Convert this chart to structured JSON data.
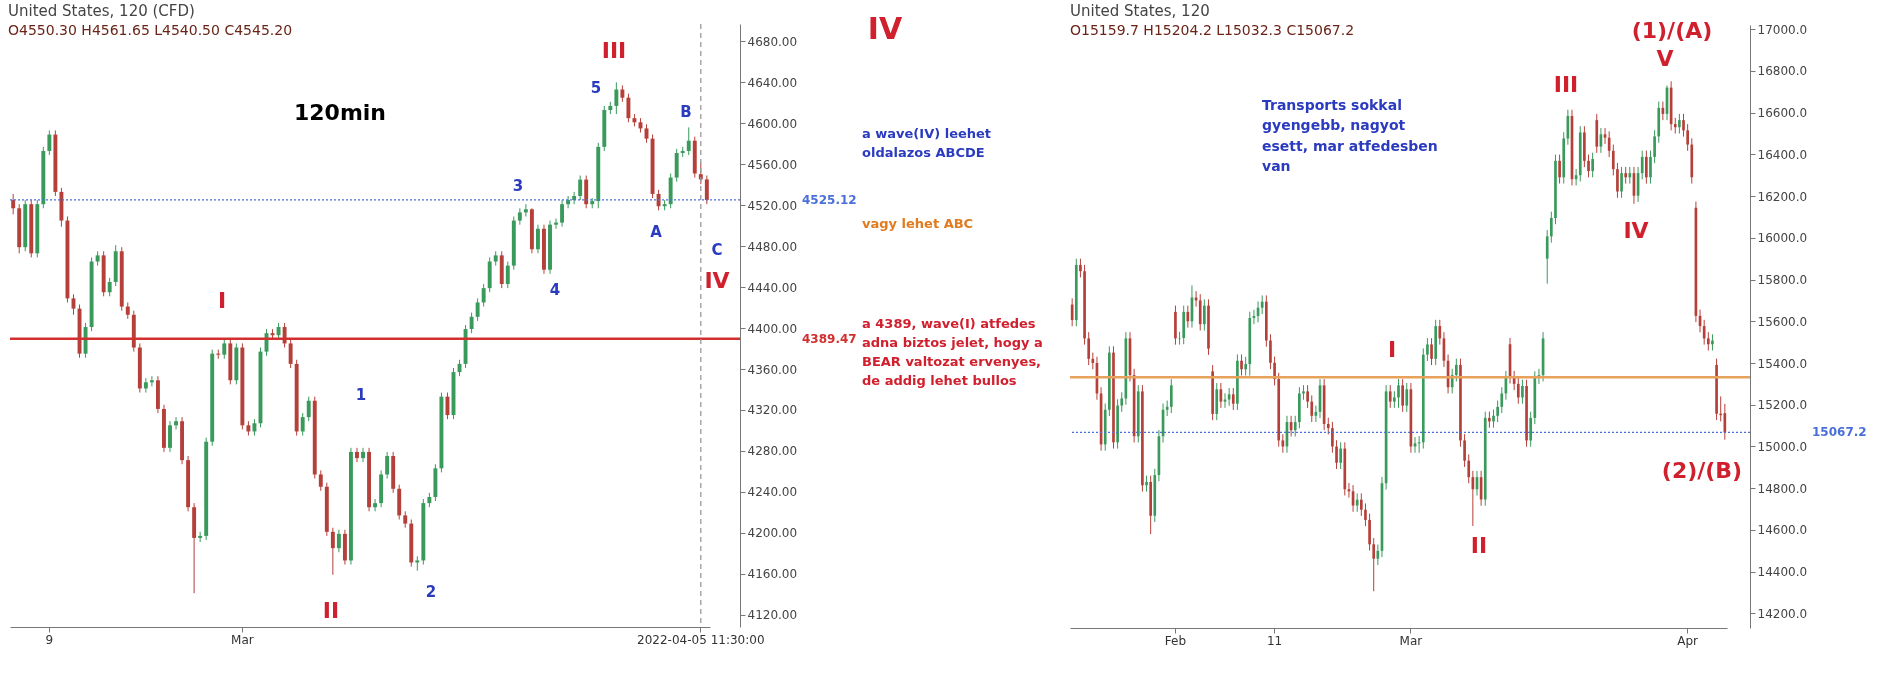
{
  "chart_data": [
    {
      "type": "candlestick",
      "title": "United States, 120 (CFD)",
      "subtitle": "O4550.30 H4561.65 L4540.50 C4545.20",
      "categories": [
        null,
        null,
        null,
        null,
        null,
        null,
        "9",
        null,
        null,
        null,
        null,
        null,
        null,
        null,
        null,
        null,
        null,
        null,
        null,
        null,
        null,
        null,
        null,
        null,
        null,
        null,
        null,
        null,
        null,
        null,
        null,
        null,
        null,
        null,
        null,
        null,
        null,
        null,
        "Mar",
        null,
        null,
        null,
        null,
        null,
        null,
        null,
        null,
        null,
        null,
        null,
        null,
        null,
        null,
        null,
        null,
        null,
        null,
        null,
        null,
        null,
        null,
        null,
        null,
        null,
        null,
        null,
        null,
        null,
        null,
        null,
        null,
        null,
        null,
        null,
        null,
        null,
        null,
        null,
        null,
        null,
        null,
        null,
        null,
        null,
        null,
        null,
        null,
        null,
        null,
        null,
        null,
        null,
        null,
        null,
        null,
        null,
        null,
        null,
        null,
        null,
        null,
        null,
        null,
        null,
        null,
        null,
        null,
        null,
        null,
        null,
        null,
        null,
        null,
        null,
        "2022-04-05 11:30:00",
        null
      ],
      "ohlc": [
        [
          4525,
          4531,
          4511,
          4517
        ],
        [
          4517,
          4521,
          4473,
          4479
        ],
        [
          4479,
          4525,
          4475,
          4521
        ],
        [
          4521,
          4525,
          4469,
          4473
        ],
        [
          4473,
          4525,
          4469,
          4521
        ],
        [
          4521,
          4577,
          4517,
          4573
        ],
        [
          4573,
          4593,
          4569,
          4589
        ],
        [
          4589,
          4593,
          4529,
          4533
        ],
        [
          4533,
          4537,
          4499,
          4505
        ],
        [
          4505,
          4509,
          4425,
          4429
        ],
        [
          4429,
          4433,
          4413,
          4419
        ],
        [
          4419,
          4423,
          4371,
          4375
        ],
        [
          4375,
          4405,
          4371,
          4401
        ],
        [
          4401,
          4469,
          4397,
          4465
        ],
        [
          4465,
          4475,
          4461,
          4471
        ],
        [
          4471,
          4475,
          4431,
          4435
        ],
        [
          4435,
          4449,
          4431,
          4445
        ],
        [
          4445,
          4481,
          4441,
          4475
        ],
        [
          4475,
          4479,
          4417,
          4421
        ],
        [
          4421,
          4425,
          4409,
          4413
        ],
        [
          4413,
          4417,
          4377,
          4381
        ],
        [
          4381,
          4385,
          4337,
          4341
        ],
        [
          4341,
          4351,
          4337,
          4347
        ],
        [
          4347,
          4353,
          4343,
          4349
        ],
        [
          4349,
          4353,
          4317,
          4321
        ],
        [
          4321,
          4325,
          4279,
          4283
        ],
        [
          4283,
          4309,
          4279,
          4305
        ],
        [
          4305,
          4313,
          4301,
          4309
        ],
        [
          4309,
          4313,
          4267,
          4271
        ],
        [
          4271,
          4275,
          4221,
          4225
        ],
        [
          4225,
          4229,
          4141,
          4195
        ],
        [
          4195,
          4201,
          4191,
          4197
        ],
        [
          4197,
          4293,
          4193,
          4289
        ],
        [
          4289,
          4379,
          4285,
          4375
        ],
        [
          4375,
          4379,
          4370,
          4374
        ],
        [
          4374,
          4389,
          4370,
          4385
        ],
        [
          4385,
          4389,
          4345,
          4349
        ],
        [
          4349,
          4385,
          4345,
          4381
        ],
        [
          4381,
          4385,
          4301,
          4305
        ],
        [
          4305,
          4309,
          4295,
          4299
        ],
        [
          4299,
          4311,
          4295,
          4307
        ],
        [
          4307,
          4381,
          4303,
          4377
        ],
        [
          4377,
          4399,
          4373,
          4395
        ],
        [
          4395,
          4399,
          4389,
          4393
        ],
        [
          4393,
          4405,
          4389,
          4401
        ],
        [
          4401,
          4405,
          4381,
          4385
        ],
        [
          4385,
          4389,
          4361,
          4365
        ],
        [
          4365,
          4369,
          4295,
          4299
        ],
        [
          4299,
          4317,
          4295,
          4313
        ],
        [
          4313,
          4333,
          4309,
          4329
        ],
        [
          4329,
          4333,
          4253,
          4257
        ],
        [
          4257,
          4261,
          4241,
          4245
        ],
        [
          4245,
          4249,
          4197,
          4201
        ],
        [
          4201,
          4205,
          4159,
          4185
        ],
        [
          4185,
          4203,
          4181,
          4199
        ],
        [
          4199,
          4203,
          4169,
          4173
        ],
        [
          4173,
          4283,
          4169,
          4279
        ],
        [
          4279,
          4283,
          4269,
          4273
        ],
        [
          4273,
          4283,
          4269,
          4279
        ],
        [
          4279,
          4283,
          4221,
          4225
        ],
        [
          4225,
          4233,
          4221,
          4229
        ],
        [
          4229,
          4261,
          4225,
          4257
        ],
        [
          4257,
          4279,
          4253,
          4275
        ],
        [
          4275,
          4279,
          4239,
          4243
        ],
        [
          4243,
          4247,
          4213,
          4217
        ],
        [
          4217,
          4221,
          4205,
          4209
        ],
        [
          4209,
          4213,
          4167,
          4171
        ],
        [
          4171,
          4177,
          4163,
          4173
        ],
        [
          4173,
          4233,
          4169,
          4229
        ],
        [
          4229,
          4239,
          4225,
          4235
        ],
        [
          4235,
          4267,
          4231,
          4263
        ],
        [
          4263,
          4337,
          4259,
          4333
        ],
        [
          4333,
          4337,
          4311,
          4315
        ],
        [
          4315,
          4361,
          4311,
          4357
        ],
        [
          4357,
          4369,
          4353,
          4365
        ],
        [
          4365,
          4403,
          4361,
          4399
        ],
        [
          4399,
          4415,
          4395,
          4411
        ],
        [
          4411,
          4429,
          4407,
          4425
        ],
        [
          4425,
          4443,
          4421,
          4439
        ],
        [
          4439,
          4469,
          4435,
          4465
        ],
        [
          4465,
          4475,
          4461,
          4471
        ],
        [
          4471,
          4475,
          4439,
          4443
        ],
        [
          4443,
          4465,
          4439,
          4461
        ],
        [
          4461,
          4509,
          4457,
          4505
        ],
        [
          4505,
          4517,
          4501,
          4513
        ],
        [
          4513,
          4521,
          4509,
          4516
        ],
        [
          4516,
          4517,
          4473,
          4477
        ],
        [
          4477,
          4501,
          4473,
          4497
        ],
        [
          4497,
          4501,
          4453,
          4457
        ],
        [
          4457,
          4505,
          4453,
          4501
        ],
        [
          4501,
          4507,
          4497,
          4503
        ],
        [
          4503,
          4525,
          4499,
          4521
        ],
        [
          4521,
          4529,
          4517,
          4525
        ],
        [
          4525,
          4533,
          4521,
          4529
        ],
        [
          4529,
          4549,
          4525,
          4545
        ],
        [
          4545,
          4549,
          4517,
          4521
        ],
        [
          4521,
          4527,
          4517,
          4524
        ],
        [
          4524,
          4581,
          4517,
          4577
        ],
        [
          4577,
          4617,
          4573,
          4613
        ],
        [
          4613,
          4621,
          4609,
          4617
        ],
        [
          4617,
          4640,
          4609,
          4633
        ],
        [
          4633,
          4637,
          4621,
          4625
        ],
        [
          4625,
          4629,
          4601,
          4605
        ],
        [
          4605,
          4609,
          4597,
          4601
        ],
        [
          4601,
          4605,
          4591,
          4595
        ],
        [
          4595,
          4599,
          4581,
          4585
        ],
        [
          4585,
          4589,
          4527,
          4531
        ],
        [
          4531,
          4535,
          4515,
          4519
        ],
        [
          4519,
          4525,
          4515,
          4521
        ],
        [
          4521,
          4551,
          4517,
          4547
        ],
        [
          4547,
          4575,
          4543,
          4571
        ],
        [
          4571,
          4577,
          4567,
          4573
        ],
        [
          4573,
          4596,
          4569,
          4583
        ],
        [
          4583,
          4587,
          4547,
          4551
        ],
        [
          4550.3,
          4561.65,
          4540.5,
          4545.2
        ],
        [
          4545.2,
          4549,
          4521,
          4525.12
        ]
      ],
      "ylim": [
        4108,
        4697
      ],
      "yticks": [
        {
          "value": 4120,
          "label": "4120.00"
        },
        {
          "value": 4160,
          "label": "4160.00"
        },
        {
          "value": 4200,
          "label": "4200.00"
        },
        {
          "value": 4240,
          "label": "4240.00"
        },
        {
          "value": 4280,
          "label": "4280.00"
        },
        {
          "value": 4320,
          "label": "4320.00"
        },
        {
          "value": 4360,
          "label": "4360.00"
        },
        {
          "value": 4400,
          "label": "4400.00"
        },
        {
          "value": 4440,
          "label": "4440.00"
        },
        {
          "value": 4480,
          "label": "4480.00"
        },
        {
          "value": 4520,
          "label": "4520.00"
        },
        {
          "value": 4560,
          "label": "4560.00"
        },
        {
          "value": 4600,
          "label": "4600.00"
        },
        {
          "value": 4640,
          "label": "4640.00"
        },
        {
          "value": 4680,
          "label": "4680.00"
        }
      ],
      "ref_lines": [
        {
          "axis": "y",
          "value": 4525.12,
          "label": "4525.12",
          "color": "#4a6fd8",
          "line_style": "dotted"
        },
        {
          "axis": "y",
          "value": 4389.47,
          "label": "4389.47",
          "color": "#d32f2f",
          "line_style": "solid"
        },
        {
          "axis": "x",
          "value": "2022-04-05 11:30:00",
          "label": null,
          "color": "#9a9a9a",
          "line_style": "dashed"
        }
      ],
      "annotations": [
        "120min",
        "IV",
        "a wave(IV) leehet oldalazos ABCDE",
        "vagy lehet ABC",
        "a 4389, wave(I) atfedes adna biztos jelet, hogy a BEAR valtozat ervenyes, de addig lehet bullos",
        "I",
        "II",
        "III",
        "1",
        "2",
        "3",
        "4",
        "5",
        "A",
        "B",
        "C",
        "IV"
      ]
    },
    {
      "type": "candlestick",
      "title": "United States, 120",
      "subtitle": "O15159.7 H15204.2 L15032.3 C15067.2",
      "categories": [
        null,
        null,
        null,
        null,
        null,
        null,
        null,
        null,
        null,
        null,
        null,
        null,
        null,
        null,
        null,
        null,
        null,
        null,
        null,
        null,
        null,
        null,
        null,
        null,
        null,
        "Feb",
        null,
        null,
        null,
        null,
        null,
        null,
        null,
        null,
        null,
        null,
        null,
        null,
        null,
        null,
        null,
        null,
        null,
        null,
        null,
        null,
        null,
        null,
        null,
        "11",
        null,
        null,
        null,
        null,
        null,
        null,
        null,
        null,
        null,
        null,
        null,
        null,
        null,
        null,
        null,
        null,
        null,
        null,
        null,
        null,
        null,
        null,
        null,
        null,
        null,
        null,
        null,
        null,
        null,
        null,
        null,
        null,
        "Mar",
        null,
        null,
        null,
        null,
        null,
        null,
        null,
        null,
        null,
        null,
        null,
        null,
        null,
        null,
        null,
        null,
        null,
        null,
        null,
        null,
        null,
        null,
        null,
        null,
        null,
        null,
        null,
        null,
        null,
        null,
        null,
        null,
        null,
        null,
        null,
        null,
        null,
        null,
        null,
        null,
        null,
        null,
        null,
        null,
        null,
        null,
        null,
        null,
        null,
        null,
        null,
        null,
        null,
        null,
        null,
        null,
        null,
        null,
        null,
        null,
        null,
        null,
        null,
        null,
        null,
        null,
        "Apr",
        null,
        null,
        null,
        null,
        null,
        null,
        null,
        null,
        null
      ],
      "ohlc": [
        [
          15680,
          15710,
          15576,
          15606
        ],
        [
          15606,
          15900,
          15576,
          15870
        ],
        [
          15870,
          15900,
          15810,
          15840
        ],
        [
          15840,
          15870,
          15488,
          15518
        ],
        [
          15518,
          15548,
          15390,
          15420
        ],
        [
          15420,
          15450,
          15370,
          15400
        ],
        [
          15400,
          15430,
          15224,
          15254
        ],
        [
          15254,
          15284,
          14980,
          15010
        ],
        [
          15010,
          15206,
          14980,
          15176
        ],
        [
          15176,
          15480,
          15146,
          15450
        ],
        [
          15450,
          15480,
          14990,
          15020
        ],
        [
          15020,
          15226,
          14990,
          15196
        ],
        [
          15196,
          15260,
          15166,
          15230
        ],
        [
          15230,
          15548,
          15200,
          15518
        ],
        [
          15518,
          15548,
          15312,
          15342
        ],
        [
          15342,
          15372,
          15019,
          15049
        ],
        [
          15049,
          15294,
          15019,
          15264
        ],
        [
          15264,
          15294,
          14784,
          14814
        ],
        [
          14814,
          14860,
          14784,
          14830
        ],
        [
          14830,
          14860,
          14580,
          14668
        ],
        [
          14668,
          14893,
          14638,
          14863
        ],
        [
          14863,
          15079,
          14833,
          15049
        ],
        [
          15049,
          15206,
          15019,
          15176
        ],
        [
          15176,
          15220,
          15146,
          15190
        ],
        [
          15190,
          15323,
          15160,
          15293
        ],
        [
          15645,
          15675,
          15488,
          15518
        ],
        [
          15518,
          15550,
          15488,
          15520
        ],
        [
          15520,
          15675,
          15490,
          15645
        ],
        [
          15645,
          15675,
          15570,
          15600
        ],
        [
          15600,
          15772,
          15570,
          15714
        ],
        [
          15714,
          15744,
          15670,
          15700
        ],
        [
          15700,
          15730,
          15556,
          15586
        ],
        [
          15586,
          15705,
          15556,
          15675
        ],
        [
          15675,
          15705,
          15439,
          15469
        ],
        [
          15360,
          15390,
          15126,
          15156
        ],
        [
          15156,
          15304,
          15126,
          15274
        ],
        [
          15274,
          15304,
          15185,
          15215
        ],
        [
          15215,
          15255,
          15185,
          15225
        ],
        [
          15225,
          15280,
          15195,
          15250
        ],
        [
          15250,
          15280,
          15175,
          15205
        ],
        [
          15205,
          15441,
          15175,
          15411
        ],
        [
          15411,
          15441,
          15340,
          15370
        ],
        [
          15370,
          15430,
          15340,
          15395
        ],
        [
          15395,
          15646,
          15340,
          15616
        ],
        [
          15616,
          15655,
          15586,
          15625
        ],
        [
          15625,
          15695,
          15595,
          15665
        ],
        [
          15665,
          15724,
          15635,
          15694
        ],
        [
          15694,
          15724,
          15478,
          15508
        ],
        [
          15508,
          15538,
          15371,
          15401
        ],
        [
          15401,
          15431,
          15293,
          15323
        ],
        [
          15323,
          15353,
          14999,
          15029
        ],
        [
          15029,
          15059,
          14970,
          15000
        ],
        [
          15000,
          15147,
          14970,
          15117
        ],
        [
          15117,
          15147,
          15048,
          15078
        ],
        [
          15078,
          15147,
          15048,
          15117
        ],
        [
          15117,
          15284,
          15087,
          15254
        ],
        [
          15254,
          15294,
          15224,
          15264
        ],
        [
          15264,
          15294,
          15185,
          15215
        ],
        [
          15215,
          15245,
          15117,
          15147
        ],
        [
          15147,
          15196,
          15117,
          15166
        ],
        [
          15166,
          15323,
          15136,
          15293
        ],
        [
          15293,
          15323,
          15078,
          15108
        ],
        [
          15108,
          15138,
          15058,
          15088
        ],
        [
          15088,
          15118,
          14970,
          15000
        ],
        [
          15000,
          15030,
          14892,
          14922
        ],
        [
          14922,
          15020,
          14892,
          14990
        ],
        [
          14990,
          15020,
          14765,
          14795
        ],
        [
          14795,
          14825,
          14755,
          14785
        ],
        [
          14785,
          14815,
          14687,
          14717
        ],
        [
          14717,
          14775,
          14687,
          14745
        ],
        [
          14745,
          14775,
          14667,
          14697
        ],
        [
          14697,
          14727,
          14618,
          14648
        ],
        [
          14648,
          14678,
          14501,
          14531
        ],
        [
          14531,
          14561,
          14306,
          14462
        ],
        [
          14462,
          14530,
          14432,
          14500
        ],
        [
          14500,
          14854,
          14470,
          14824
        ],
        [
          14824,
          15294,
          14794,
          15264
        ],
        [
          15264,
          15294,
          15185,
          15215
        ],
        [
          15215,
          15265,
          15185,
          15235
        ],
        [
          15235,
          15323,
          15185,
          15293
        ],
        [
          15293,
          15323,
          15166,
          15196
        ],
        [
          15196,
          15304,
          15166,
          15274
        ],
        [
          15274,
          15304,
          14970,
          15000
        ],
        [
          15000,
          15045,
          14970,
          15015
        ],
        [
          15015,
          15050,
          14970,
          15020
        ],
        [
          15020,
          15470,
          14990,
          15440
        ],
        [
          15440,
          15519,
          15410,
          15489
        ],
        [
          15489,
          15519,
          15390,
          15420
        ],
        [
          15420,
          15607,
          15390,
          15577
        ],
        [
          15577,
          15607,
          15488,
          15518
        ],
        [
          15518,
          15548,
          15381,
          15411
        ],
        [
          15411,
          15441,
          15254,
          15284
        ],
        [
          15284,
          15372,
          15254,
          15342
        ],
        [
          15342,
          15421,
          15312,
          15391
        ],
        [
          15391,
          15421,
          14999,
          15029
        ],
        [
          15029,
          15059,
          14902,
          14932
        ],
        [
          14932,
          14962,
          14823,
          14853
        ],
        [
          14853,
          14883,
          14619,
          14795
        ],
        [
          14795,
          14883,
          14765,
          14853
        ],
        [
          14853,
          14883,
          14716,
          14746
        ],
        [
          14746,
          15167,
          14716,
          15137
        ],
        [
          15137,
          15167,
          15090,
          15120
        ],
        [
          15120,
          15177,
          15090,
          15147
        ],
        [
          15147,
          15220,
          15117,
          15190
        ],
        [
          15190,
          15284,
          15160,
          15254
        ],
        [
          15254,
          15362,
          15224,
          15332
        ],
        [
          15490,
          15520,
          15302,
          15332
        ],
        [
          15332,
          15362,
          15270,
          15300
        ],
        [
          15300,
          15330,
          15205,
          15235
        ],
        [
          15235,
          15320,
          15205,
          15290
        ],
        [
          15290,
          15320,
          14999,
          15029
        ],
        [
          15029,
          15167,
          14999,
          15137
        ],
        [
          15137,
          15360,
          15107,
          15330
        ],
        [
          15330,
          15372,
          15300,
          15342
        ],
        [
          15342,
          15548,
          15312,
          15518
        ],
        [
          15900,
          16037,
          15780,
          16007
        ],
        [
          16007,
          16125,
          15977,
          16095
        ],
        [
          16095,
          16399,
          16065,
          16369
        ],
        [
          16369,
          16399,
          16260,
          16290
        ],
        [
          16290,
          16506,
          16260,
          16476
        ],
        [
          16476,
          16614,
          16446,
          16584
        ],
        [
          16584,
          16614,
          16251,
          16281
        ],
        [
          16281,
          16330,
          16251,
          16300
        ],
        [
          16300,
          16535,
          16270,
          16505
        ],
        [
          16505,
          16535,
          16339,
          16369
        ],
        [
          16369,
          16399,
          16290,
          16320
        ],
        [
          16320,
          16408,
          16290,
          16378
        ],
        [
          16564,
          16594,
          16407,
          16437
        ],
        [
          16437,
          16526,
          16407,
          16496
        ],
        [
          16496,
          16526,
          16450,
          16480
        ],
        [
          16480,
          16510,
          16387,
          16417
        ],
        [
          16417,
          16447,
          16299,
          16329
        ],
        [
          16329,
          16359,
          16192,
          16222
        ],
        [
          16222,
          16340,
          16192,
          16310
        ],
        [
          16310,
          16340,
          16260,
          16290
        ],
        [
          16290,
          16340,
          16260,
          16310
        ],
        [
          16310,
          16340,
          16163,
          16202
        ],
        [
          16202,
          16340,
          16172,
          16310
        ],
        [
          16310,
          16418,
          16280,
          16388
        ],
        [
          16388,
          16418,
          16260,
          16290
        ],
        [
          16290,
          16418,
          16260,
          16388
        ],
        [
          16388,
          16516,
          16358,
          16486
        ],
        [
          16486,
          16653,
          16456,
          16623
        ],
        [
          16623,
          16653,
          16564,
          16594
        ],
        [
          16594,
          16730,
          16564,
          16720
        ],
        [
          16720,
          16750,
          16515,
          16545
        ],
        [
          16545,
          16575,
          16500,
          16530
        ],
        [
          16530,
          16594,
          16500,
          16564
        ],
        [
          16564,
          16594,
          16485,
          16515
        ],
        [
          16515,
          16545,
          16417,
          16447
        ],
        [
          16447,
          16477,
          16260,
          16290
        ],
        [
          16144,
          16174,
          15596,
          15626
        ],
        [
          15626,
          15656,
          15547,
          15577
        ],
        [
          15577,
          15607,
          15488,
          15518
        ],
        [
          15518,
          15548,
          15460,
          15490
        ],
        [
          15490,
          15538,
          15460,
          15508
        ],
        [
          15391,
          15421,
          15127,
          15157
        ],
        [
          15157,
          15240,
          15120,
          15150
        ],
        [
          15159.7,
          15204.2,
          15032.3,
          15067.2
        ]
      ],
      "ylim": [
        14130,
        17020
      ],
      "yticks": [
        {
          "value": 14200,
          "label": "14200.0"
        },
        {
          "value": 14400,
          "label": "14400.0"
        },
        {
          "value": 14600,
          "label": "14600.0"
        },
        {
          "value": 14800,
          "label": "14800.0"
        },
        {
          "value": 15000,
          "label": "15000.0"
        },
        {
          "value": 15200,
          "label": "15200.0"
        },
        {
          "value": 15400,
          "label": "15400.0"
        },
        {
          "value": 15600,
          "label": "15600.0"
        },
        {
          "value": 15800,
          "label": "15800.0"
        },
        {
          "value": 16000,
          "label": "16000.0"
        },
        {
          "value": 16200,
          "label": "16200.0"
        },
        {
          "value": 16400,
          "label": "16400.0"
        },
        {
          "value": 16600,
          "label": "16600.0"
        },
        {
          "value": 16800,
          "label": "16800.0"
        },
        {
          "value": 17000,
          "label": "17000.0"
        }
      ],
      "ref_lines": [
        {
          "axis": "y",
          "value": 15067.2,
          "label": "15067.2",
          "color": "#4a6fd8",
          "line_style": "dotted"
        },
        {
          "axis": "y",
          "value": 15332,
          "label": null,
          "color": "#e8a15a",
          "line_style": "solid"
        }
      ],
      "annotations": [
        "Transports sokkal gyengebb, nagyot esett, mar atfedesben van",
        "I",
        "II",
        "III",
        "IV",
        "V",
        "(1)/(A)",
        "(2)/(B)"
      ]
    }
  ]
}
